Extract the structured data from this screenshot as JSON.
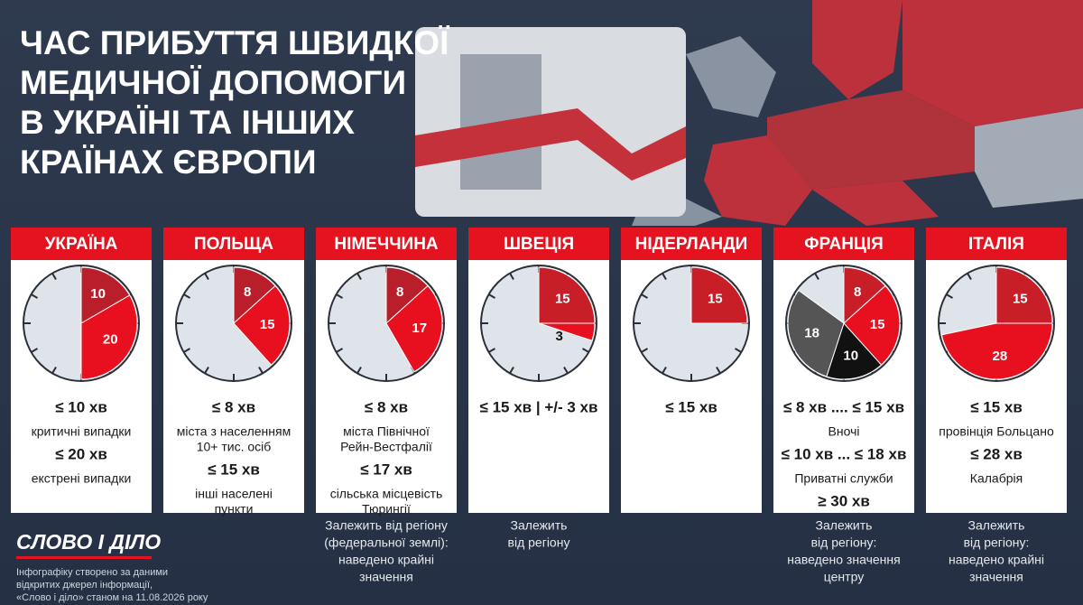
{
  "header": {
    "title": [
      "ЧАС ПРИБУТТЯ ШВИДКОЇ",
      "МЕДИЧНОЇ ДОПОМОГИ",
      "В УКРАЇНІ ТА ІНШИХ",
      "КРАЇНАХ ЄВРОПИ"
    ]
  },
  "clock_range": [
    0,
    60
  ],
  "cards": [
    {
      "country": "УКРАЇНА",
      "segments": [
        {
          "value": 10,
          "color": "#b81f2a"
        },
        {
          "value": 20,
          "color": "#e8101f"
        }
      ],
      "lines": [
        {
          "text": "≤ 10 хв",
          "bold": true
        },
        {
          "text": "критичні випадки",
          "bold": false
        },
        {
          "text": "≤ 20 хв",
          "bold": true
        },
        {
          "text": "екстрені випадки",
          "bold": false
        }
      ],
      "note": []
    },
    {
      "country": "ПОЛЬЩА",
      "segments": [
        {
          "value": 8,
          "color": "#b81f2a"
        },
        {
          "value": 15,
          "color": "#e8101f"
        }
      ],
      "lines": [
        {
          "text": "≤ 8 хв",
          "bold": true
        },
        {
          "text": "міста з населенням",
          "bold": false
        },
        {
          "text": "10+ тис. осіб",
          "bold": false
        },
        {
          "text": "≤ 15 хв",
          "bold": true
        },
        {
          "text": "інші населені",
          "bold": false
        },
        {
          "text": "пункти",
          "bold": false
        }
      ],
      "note": []
    },
    {
      "country": "НІМЕЧЧИНА",
      "segments": [
        {
          "value": 8,
          "color": "#b81f2a"
        },
        {
          "value": 17,
          "color": "#e8101f"
        }
      ],
      "lines": [
        {
          "text": "≤ 8 хв",
          "bold": true
        },
        {
          "text": "міста Північної",
          "bold": false
        },
        {
          "text": "Рейн-Вестфалії",
          "bold": false
        },
        {
          "text": "≤ 17 хв",
          "bold": true
        },
        {
          "text": "сільська місцевість",
          "bold": false
        },
        {
          "text": "Тюрингії",
          "bold": false
        }
      ],
      "note": [
        "Залежить від регіону",
        "(федеральної землі):",
        "наведено крайні",
        "значення"
      ]
    },
    {
      "country": "ШВЕЦІЯ",
      "segments": [
        {
          "value": 15,
          "color": "#c81e28"
        },
        {
          "value": 3,
          "color": "#e8101f"
        }
      ],
      "lines": [
        {
          "text": "≤ 15 хв | +/- 3 хв",
          "bold": true
        }
      ],
      "note": [
        "Залежить",
        "від регіону"
      ]
    },
    {
      "country": "НІДЕРЛАНДИ",
      "segments": [
        {
          "value": 15,
          "color": "#c81e28"
        }
      ],
      "lines": [
        {
          "text": "≤ 15 хв",
          "bold": true
        }
      ],
      "note": []
    },
    {
      "country": "ФРАНЦІЯ",
      "segments": [
        {
          "value": 8,
          "color": "#c81e28"
        },
        {
          "value": 15,
          "color": "#e8101f"
        },
        {
          "value": 10,
          "color": "#111111"
        },
        {
          "value": 18,
          "color": "#555555"
        }
      ],
      "lines": [
        {
          "text": "≤ 8 хв .... ≤ 15 хв",
          "bold": true
        },
        {
          "text": "Вночі",
          "bold": false
        },
        {
          "text": "≤ 10 хв ... ≤ 18 хв",
          "bold": true
        },
        {
          "text": "Приватні служби",
          "bold": false
        },
        {
          "text": "≥ 30 хв",
          "bold": true
        }
      ],
      "note": [
        "Залежить",
        "від регіону:",
        "наведено значення",
        "центру"
      ]
    },
    {
      "country": "ІТАЛІЯ",
      "segments": [
        {
          "value": 15,
          "color": "#c81e28"
        },
        {
          "value": 28,
          "color": "#e8101f"
        }
      ],
      "lines": [
        {
          "text": "≤ 15 хв",
          "bold": true
        },
        {
          "text": "провінція Больцано",
          "bold": false
        },
        {
          "text": "≤ 28 хв",
          "bold": true
        },
        {
          "text": "Калабрія",
          "bold": false
        }
      ],
      "note": [
        "Залежить",
        "від регіону:",
        "наведено крайні",
        "значення"
      ]
    }
  ],
  "footer": {
    "logo": "СЛОВО І ДІЛО",
    "source": [
      "Інфографіку створено за даними",
      "відкритих джерел інформації,",
      "«Слово і діло» станом на 11.08.2026 року"
    ]
  }
}
